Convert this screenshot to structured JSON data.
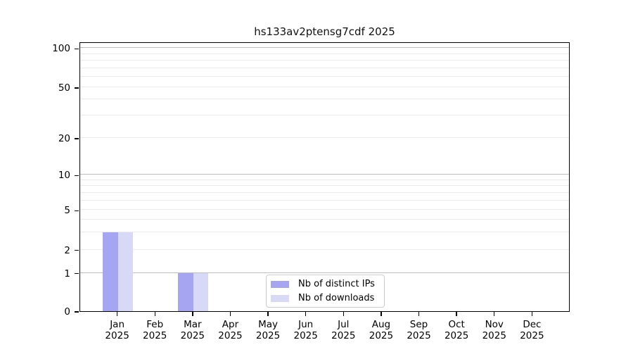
{
  "title": "hs133av2ptensg7cdf 2025",
  "chart_data": {
    "type": "bar",
    "title": "hs133av2ptensg7cdf 2025",
    "categories": [
      "Jan",
      "Feb",
      "Mar",
      "Apr",
      "May",
      "Jun",
      "Jul",
      "Aug",
      "Sep",
      "Oct",
      "Nov",
      "Dec"
    ],
    "category_year": "2025",
    "series": [
      {
        "name": "Nb of distinct IPs",
        "color": "#a5a5f1",
        "values": [
          3,
          0,
          1,
          0,
          0,
          0,
          0,
          0,
          0,
          0,
          0,
          0
        ]
      },
      {
        "name": "Nb of downloads",
        "color": "#d8d8f7",
        "values": [
          3,
          0,
          1,
          0,
          0,
          0,
          0,
          0,
          0,
          0,
          0,
          0
        ]
      }
    ],
    "y_axis": {
      "scale": "symlog",
      "ticks": [
        0,
        1,
        2,
        5,
        10,
        20,
        50,
        100
      ],
      "major_grid_values": [
        1,
        10,
        100
      ],
      "minor_grid_values": [
        2,
        3,
        4,
        5,
        6,
        7,
        8,
        9,
        20,
        30,
        40,
        50,
        60,
        70,
        80,
        90
      ],
      "ylim": [
        0,
        115
      ]
    },
    "x_axis": {
      "tick_label_line2": "2025"
    },
    "legend": {
      "position": "lower-center-inside"
    }
  },
  "colors": {
    "major_grid": "#bdbdbd",
    "minor_grid": "#ebebeb",
    "frame": "#000000",
    "bar_distinct_ips": "#a5a5f1",
    "bar_downloads": "#d8d8f7"
  }
}
